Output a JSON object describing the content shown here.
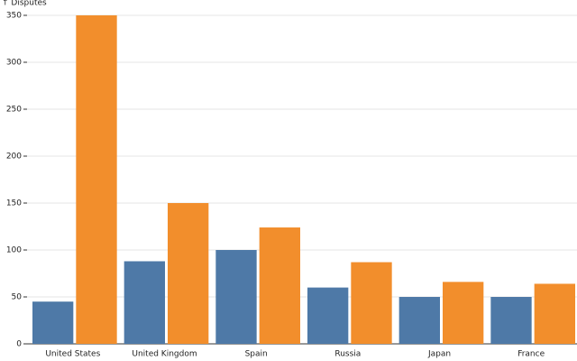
{
  "chart_data": {
    "type": "bar",
    "y_label": "↑ Disputes",
    "categories": [
      "United States",
      "United Kingdom",
      "Spain",
      "Russia",
      "Japan",
      "France"
    ],
    "series": [
      {
        "color": "#4e79a7",
        "values": [
          45,
          88,
          100,
          60,
          50,
          50
        ]
      },
      {
        "color": "#f28e2c",
        "values": [
          350,
          150,
          124,
          87,
          66,
          64
        ]
      }
    ],
    "ylim": [
      0,
      350
    ],
    "yticks": [
      0,
      50,
      100,
      150,
      200,
      250,
      300,
      350
    ],
    "grid": true
  }
}
